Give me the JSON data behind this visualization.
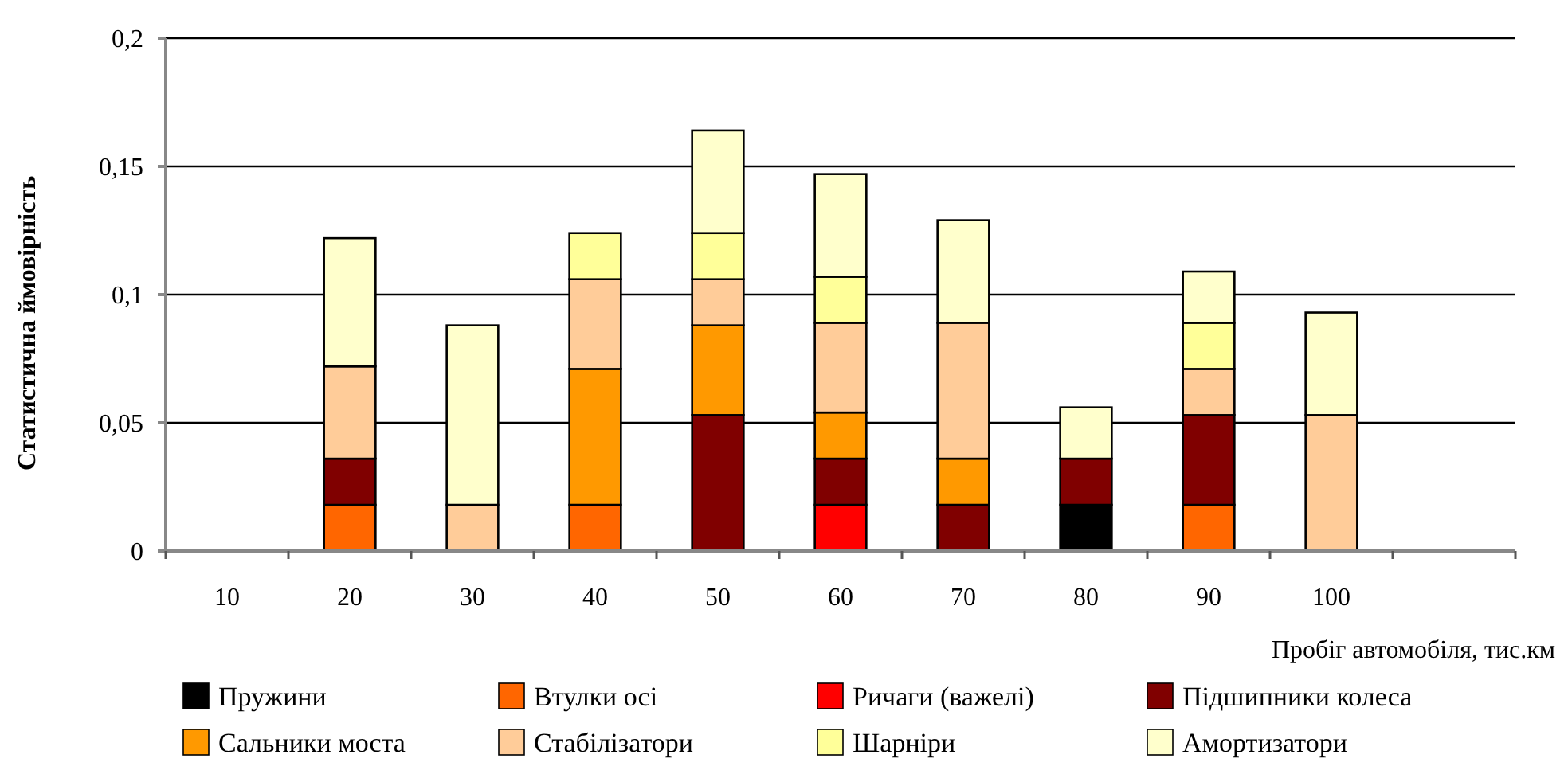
{
  "chart_data": {
    "type": "bar",
    "stacked": true,
    "ylabel": "Статистична ймовірність",
    "xlabel": "Пробіг автомобіля, тис.км",
    "categories": [
      "10",
      "20",
      "30",
      "40",
      "50",
      "60",
      "70",
      "80",
      "90",
      "100",
      null
    ],
    "series": [
      {
        "name": "Пружини",
        "color": "#000000",
        "values": [
          null,
          null,
          null,
          null,
          null,
          null,
          null,
          0.018,
          null,
          null,
          null
        ]
      },
      {
        "name": "Втулки осі",
        "color": "#ff6600",
        "values": [
          null,
          0.018,
          null,
          0.018,
          null,
          null,
          null,
          null,
          0.018,
          null,
          null
        ]
      },
      {
        "name": "Ричаги (важелі)",
        "color": "#ff0000",
        "values": [
          null,
          null,
          null,
          null,
          null,
          0.018,
          null,
          null,
          null,
          null,
          null
        ]
      },
      {
        "name": "Підшипники колеса",
        "color": "#800000",
        "values": [
          null,
          0.018,
          null,
          null,
          0.053,
          0.018,
          0.018,
          0.018,
          0.035,
          null,
          null
        ]
      },
      {
        "name": "Сальники моста",
        "color": "#ff9900",
        "values": [
          null,
          null,
          null,
          0.053,
          0.035,
          0.018,
          0.018,
          null,
          null,
          null,
          null
        ]
      },
      {
        "name": "Стабілізатори",
        "color": "#ffcc99",
        "values": [
          null,
          0.036,
          0.018,
          0.035,
          0.018,
          0.035,
          0.053,
          null,
          0.018,
          0.053,
          null
        ]
      },
      {
        "name": "Шарніри",
        "color": "#ffff99",
        "values": [
          null,
          null,
          null,
          0.018,
          0.018,
          0.018,
          null,
          null,
          0.018,
          null,
          null
        ]
      },
      {
        "name": "Амортизатори",
        "color": "#ffffcc",
        "values": [
          null,
          0.05,
          0.07,
          null,
          0.04,
          0.04,
          0.04,
          0.02,
          0.02,
          0.04,
          null
        ]
      }
    ],
    "ylim": [
      0,
      0.2
    ],
    "yticks": [
      0,
      {
        "value": 0.05,
        "label": "0,05"
      },
      {
        "value": 0.1,
        "label": "0,1"
      },
      {
        "value": 0.15,
        "label": "0,15"
      },
      {
        "value": 0.2,
        "label": "0,2"
      }
    ],
    "grid": "y",
    "legend": "bottom"
  }
}
